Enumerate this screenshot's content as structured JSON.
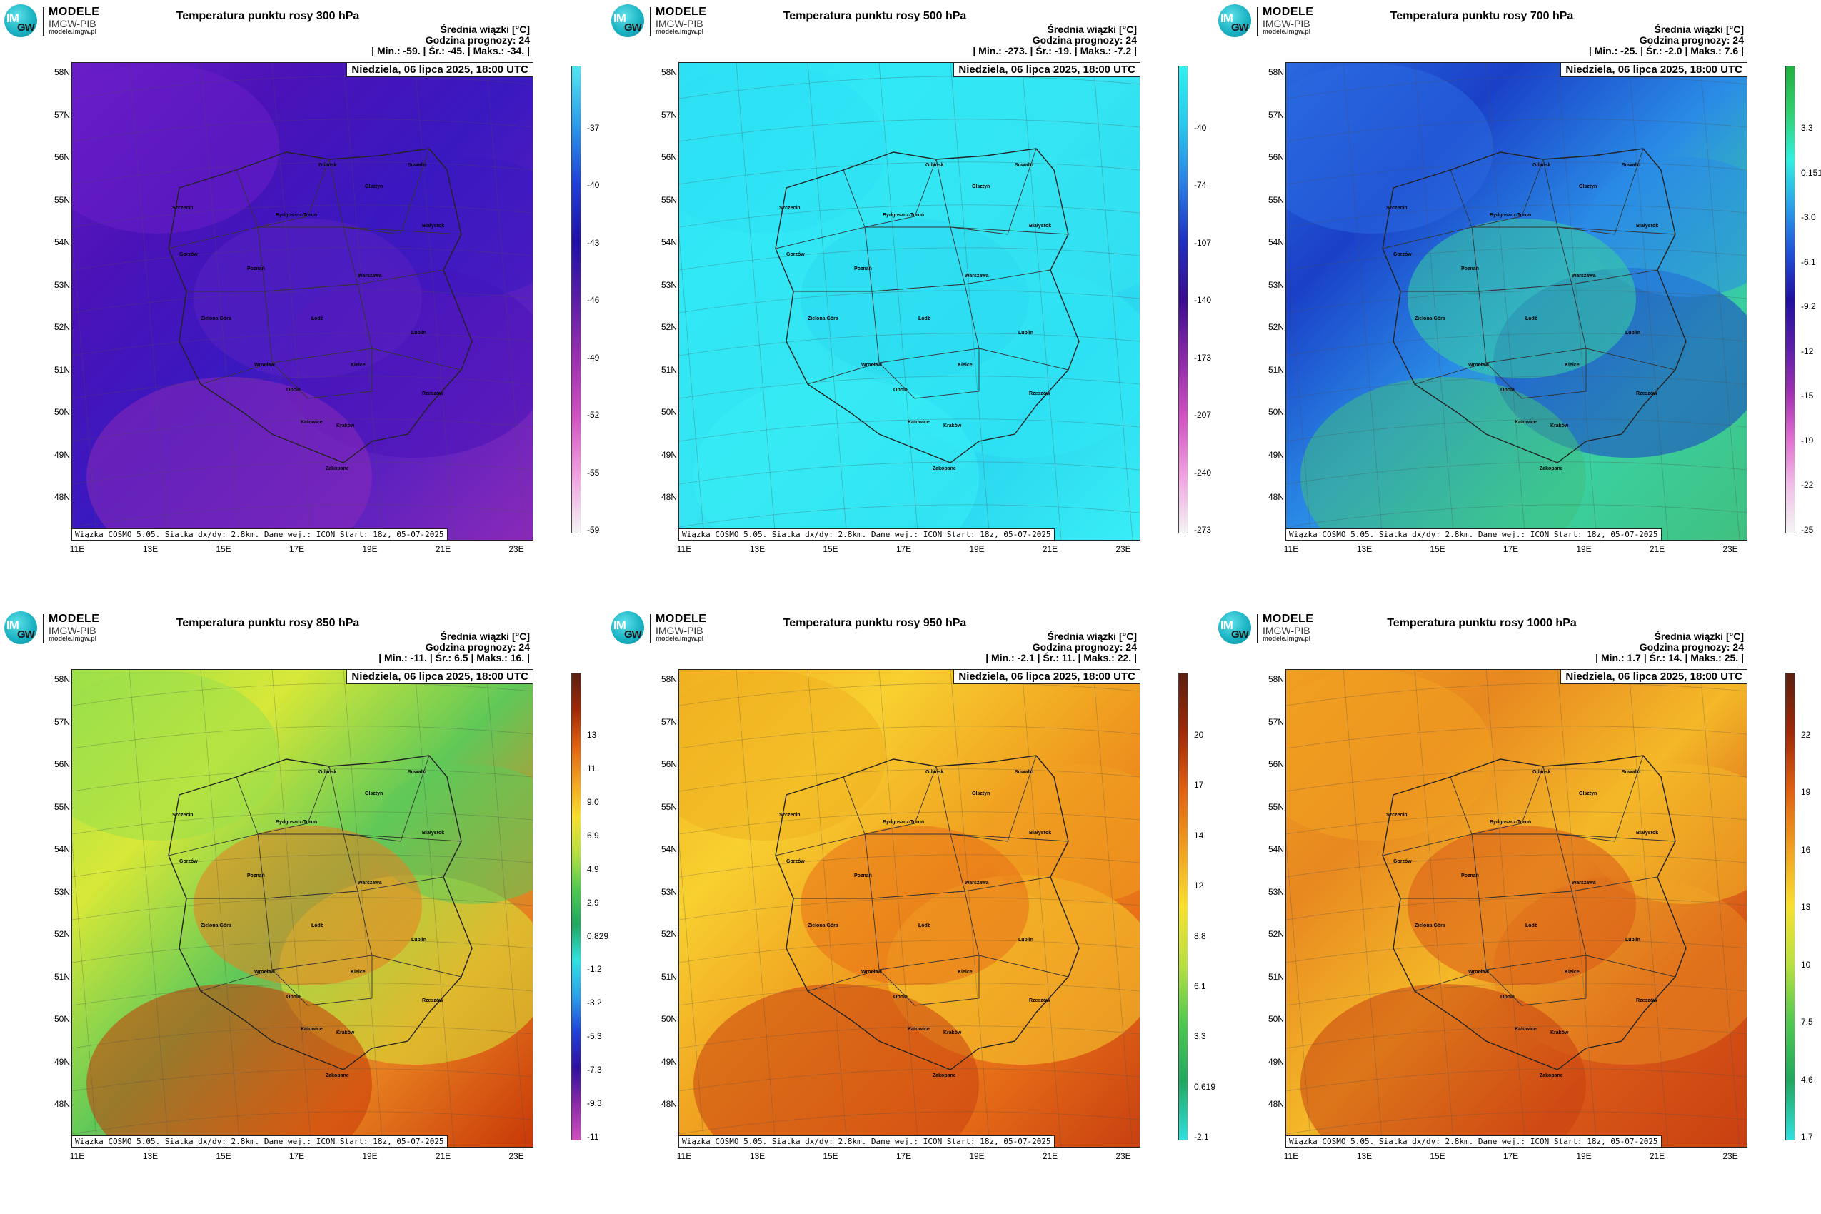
{
  "logo": {
    "brand": "MODELE",
    "org": "IMGW-PIB",
    "url": "modele.imgw.pl",
    "mark_top": "IM",
    "mark_bottom": "GW"
  },
  "common": {
    "units_label": "Średnia wiązki [°C]",
    "forecast_label": "Godzina prognozy: 24",
    "date": "Niedziela, 06 lipca 2025, 18:00 UTC",
    "footnote": "Wiązka COSMO 5.05. Siatka dx/dy: 2.8km. Dane wej.: ICON Start: 18z, 05-07-2025",
    "lat_labels": [
      "58N",
      "57N",
      "56N",
      "55N",
      "54N",
      "53N",
      "52N",
      "51N",
      "50N",
      "49N",
      "48N"
    ],
    "lon_labels": [
      "11E",
      "13E",
      "15E",
      "17E",
      "19E",
      "21E",
      "23E"
    ],
    "cities": [
      "Gdańsk",
      "Olsztyn",
      "Suwałki",
      "Szczecin",
      "Bydgoszcz-Toruń",
      "Białystok",
      "Gorzów",
      "Poznań",
      "Warszawa",
      "Zielona Góra",
      "Łódź",
      "Lublin",
      "Wrocław",
      "Kielce",
      "Opole",
      "Rzeszów",
      "Katowice",
      "Kraków",
      "Zakopane"
    ]
  },
  "panels": [
    {
      "title": "Temperatura punktu rosy 300 hPa",
      "stats": "| Min.:   -59. | Śr.:   -45. | Maks.:   -34. |",
      "colorbar": [
        "-37",
        "-40",
        "-43",
        "-46",
        "-49",
        "-52",
        "-55",
        "-59"
      ],
      "cbar_colors": [
        "#52e6ef",
        "#2a9bea",
        "#2040d8",
        "#2010a8",
        "#5a1ea8",
        "#9a30b0",
        "#d050c0",
        "#f0a0e0",
        "#f4f4f4"
      ],
      "map_colors": [
        "#6a1ec8",
        "#4a12b8",
        "#3a18c0",
        "#5a20c0",
        "#8a2ab8"
      ]
    },
    {
      "title": "Temperatura punktu rosy 500 hPa",
      "stats": "| Min.:  -273. | Śr.:   -19. | Maks.:   -7.2 |",
      "colorbar": [
        "-40",
        "-74",
        "-107",
        "-140",
        "-173",
        "-207",
        "-240",
        "-273"
      ],
      "cbar_colors": [
        "#30f0f0",
        "#28c8ec",
        "#2a80e6",
        "#2030c0",
        "#3a0c90",
        "#8a2aa8",
        "#d050c0",
        "#f0a0e0",
        "#f4f4f4"
      ],
      "map_colors": [
        "#2ee0f4",
        "#30e8f6",
        "#34e4f2",
        "#2cd8f0",
        "#38eef6"
      ]
    },
    {
      "title": "Temperatura punktu rosy 700 hPa",
      "stats": "| Min.:   -25. | Śr.:   -2.0 | Maks.:    7.6 |",
      "colorbar": [
        "3.3",
        "0.151",
        "-3.0",
        "-6.1",
        "-9.2",
        "-12",
        "-15",
        "-19",
        "-22",
        "-25"
      ],
      "cbar_colors": [
        "#20b040",
        "#30d070",
        "#30f0e0",
        "#2aa0ea",
        "#2050d8",
        "#2010a0",
        "#5a1ea8",
        "#a030b0",
        "#e070d0",
        "#f0c0e8",
        "#f4f4f4"
      ],
      "map_colors": [
        "#2a6ae0",
        "#1a40c8",
        "#2a8ce6",
        "#3ad0a0",
        "#40c080"
      ]
    },
    {
      "title": "Temperatura punktu rosy 850 hPa",
      "stats": "| Min.:   -11. | Śr.:    6.5 | Maks.:    16. |",
      "colorbar": [
        "13",
        "11",
        "9.0",
        "6.9",
        "4.9",
        "2.9",
        "0.829",
        "-1.2",
        "-3.2",
        "-5.3",
        "-7.3",
        "-9.3",
        "-11"
      ],
      "cbar_colors": [
        "#5a2010",
        "#a02808",
        "#e06010",
        "#f0a020",
        "#f8e030",
        "#b8e040",
        "#50c850",
        "#20a860",
        "#30e0e0",
        "#2aa0ea",
        "#2040d8",
        "#3010a0",
        "#8a2aa8",
        "#d050c0"
      ],
      "map_colors": [
        "#9ae04a",
        "#d8e838",
        "#60c858",
        "#e88020",
        "#c83808"
      ]
    },
    {
      "title": "Temperatura punktu rosy 950 hPa",
      "stats": "| Min.:   -2.1 | Śr.:    11. | Maks.:    22. |",
      "colorbar": [
        "20",
        "17",
        "14",
        "12",
        "8.8",
        "6.1",
        "3.3",
        "0.619",
        "-2.1"
      ],
      "cbar_colors": [
        "#5a2010",
        "#a02808",
        "#e06010",
        "#f0a020",
        "#f8e030",
        "#b8e040",
        "#50c850",
        "#20a860",
        "#30e0e0"
      ],
      "map_colors": [
        "#f0b020",
        "#f8d030",
        "#f0a020",
        "#e87018",
        "#c84010"
      ]
    },
    {
      "title": "Temperatura punktu rosy 1000 hPa",
      "stats": "| Min.:    1.7 | Śr.:    14. | Maks.:    25. |",
      "colorbar": [
        "22",
        "19",
        "16",
        "13",
        "10",
        "7.5",
        "4.6",
        "1.7"
      ],
      "cbar_colors": [
        "#5a2010",
        "#a02808",
        "#e06010",
        "#f0a020",
        "#f8e030",
        "#b8e040",
        "#50c850",
        "#20a860",
        "#30e0e0"
      ],
      "map_colors": [
        "#f0a020",
        "#e88820",
        "#f4b828",
        "#d85818",
        "#c84010"
      ]
    }
  ]
}
